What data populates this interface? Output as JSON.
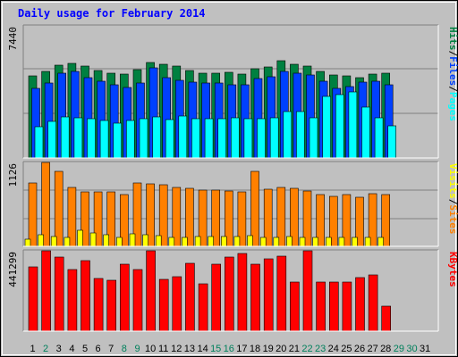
{
  "chart_data": {
    "type": "bar",
    "title": "Daily usage for February 2014",
    "days": [
      "1",
      "2",
      "3",
      "4",
      "5",
      "6",
      "7",
      "8",
      "9",
      "10",
      "11",
      "12",
      "13",
      "14",
      "15",
      "16",
      "17",
      "18",
      "19",
      "20",
      "21",
      "22",
      "23",
      "24",
      "25",
      "26",
      "27",
      "28",
      "29",
      "30",
      "31"
    ],
    "weekend_days": [
      2,
      8,
      9,
      15,
      16,
      22,
      23,
      29,
      30
    ],
    "colors": {
      "hits": "#008040",
      "files": "#0040ff",
      "pages": "#00ffff",
      "visits": "#ffff00",
      "sites": "#ff8000",
      "kbytes": "#ff0000",
      "weekday": "#000000",
      "weekend": "#00805c",
      "title": "#0000ff",
      "background": "#c0c0c0",
      "plot": "#c0c0c0"
    },
    "panels": [
      {
        "name": "hits-files-pages",
        "ymax_label": "7440",
        "ymax": 7440,
        "right_labels": [
          {
            "text": "Hits",
            "color": "#008040"
          },
          {
            "text": "/",
            "color": "#000000"
          },
          {
            "text": "Files",
            "color": "#0040ff"
          },
          {
            "text": "/",
            "color": "#000000"
          },
          {
            "text": "Pages",
            "color": "#00ffff"
          }
        ],
        "series": [
          {
            "name": "Hits",
            "values": [
              4640,
              4880,
              5250,
              5320,
              5180,
              4950,
              4800,
              4720,
              5000,
              5370,
              5300,
              5200,
              4910,
              4800,
              4800,
              4850,
              4740,
              5050,
              5150,
              5460,
              5300,
              5190,
              4860,
              4690,
              4630,
              4510,
              4720,
              4780
            ]
          },
          {
            "name": "Files",
            "values": [
              3900,
              4200,
              4800,
              4900,
              4500,
              4300,
              4100,
              3950,
              4200,
              5100,
              4500,
              4350,
              4250,
              4200,
              4200,
              4100,
              4120,
              4450,
              4580,
              4900,
              4800,
              4650,
              4300,
              3900,
              4000,
              4250,
              4320,
              4100
            ]
          },
          {
            "name": "Pages",
            "values": [
              1750,
              2050,
              2300,
              2280,
              2200,
              2100,
              1950,
              2100,
              2200,
              2300,
              2150,
              2350,
              2200,
              2200,
              2200,
              2250,
              2200,
              2200,
              2250,
              2600,
              2600,
              2250,
              3450,
              3550,
              3700,
              2850,
              2250,
              1800
            ]
          }
        ]
      },
      {
        "name": "sites-visits",
        "ymax_label": "1126",
        "ymax": 1126,
        "right_labels": [
          {
            "text": "Visits",
            "color": "#ffff00"
          },
          {
            "text": "/",
            "color": "#000000"
          },
          {
            "text": "Sites",
            "color": "#ff8000"
          }
        ],
        "series": [
          {
            "name": "Sites",
            "values": [
              850,
              1126,
              1010,
              790,
              730,
              730,
              730,
              700,
              855,
              835,
              830,
              785,
              775,
              760,
              760,
              745,
              730,
              1010,
              770,
              795,
              775,
              745,
              690,
              665,
              690,
              655,
              705,
              700
            ]
          },
          {
            "name": "Visits",
            "values": [
              100,
              150,
              130,
              125,
              210,
              185,
              155,
              115,
              170,
              155,
              140,
              115,
              125,
              130,
              130,
              135,
              135,
              140,
              115,
              115,
              130,
              125,
              120,
              120,
              125,
              115,
              115,
              115
            ]
          }
        ]
      },
      {
        "name": "kbytes",
        "ymax_label": "441299",
        "ymax": 441299,
        "right_labels": [
          {
            "text": "KBytes",
            "color": "#ff0000"
          }
        ],
        "series": [
          {
            "name": "KBytes",
            "values": [
              355000,
              441299,
              405000,
              339000,
              389000,
              287000,
              280000,
              368000,
              336000,
              439000,
              282000,
              299000,
              373000,
              259000,
              366000,
              407000,
              426000,
              367000,
              398000,
              413000,
              268000,
              441299,
              270000,
              270000,
              270000,
              292000,
              308000,
              138000
            ]
          }
        ]
      }
    ]
  }
}
